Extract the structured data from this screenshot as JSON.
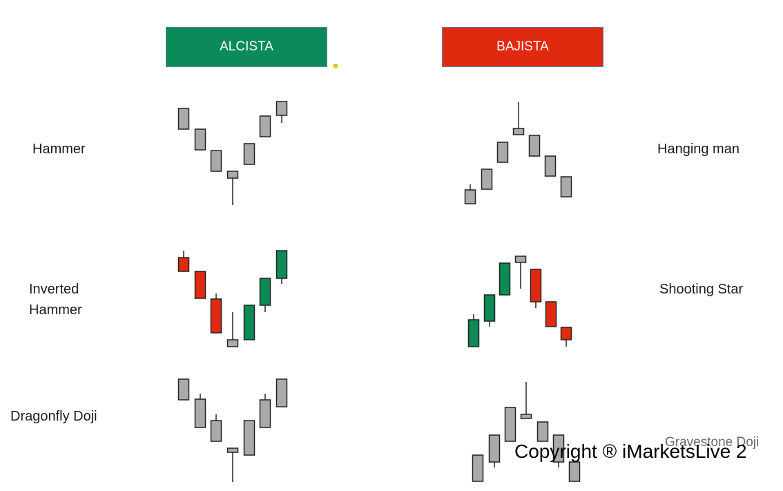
{
  "headers": {
    "bullish": "ALCISTA",
    "bearish": "BAJISTA",
    "bullish_color": "#0b8a5a",
    "bearish_color": "#e02a10"
  },
  "labels": {
    "hammer": "Hammer",
    "inverted_hammer": "Inverted\nHammer",
    "dragonfly_doji": "Dragonfly Doji",
    "hanging_man": "Hanging man",
    "shooting_star": "Shooting Star",
    "gravestone_doji": "Gravestone Doji"
  },
  "watermark": "Copyright ® iMarketsLive 2",
  "colors": {
    "neutral": "#aaaaaa",
    "bull": "#0d8a55",
    "bear": "#e02a10",
    "outline": "#222222"
  },
  "chart_data": [
    {
      "type": "candlestick",
      "name": "Hammer",
      "candles": [
        {
          "open": 4,
          "close": 1,
          "high": 4,
          "low": 1,
          "color": "neutral"
        },
        {
          "open": 3,
          "close": 0,
          "high": 3,
          "low": 0,
          "color": "neutral"
        },
        {
          "open": 2,
          "close": -1,
          "high": 2,
          "low": -1,
          "color": "neutral"
        },
        {
          "open": 1,
          "close": 0,
          "high": 1,
          "low": -4,
          "color": "neutral"
        },
        {
          "open": 2,
          "close": -1,
          "high": 2,
          "low": -1,
          "color": "neutral"
        },
        {
          "open": 3,
          "close": 0,
          "high": 3,
          "low": 0,
          "color": "neutral"
        },
        {
          "open": 5,
          "close": 3,
          "high": 5,
          "low": 2,
          "color": "neutral"
        }
      ]
    }
  ]
}
